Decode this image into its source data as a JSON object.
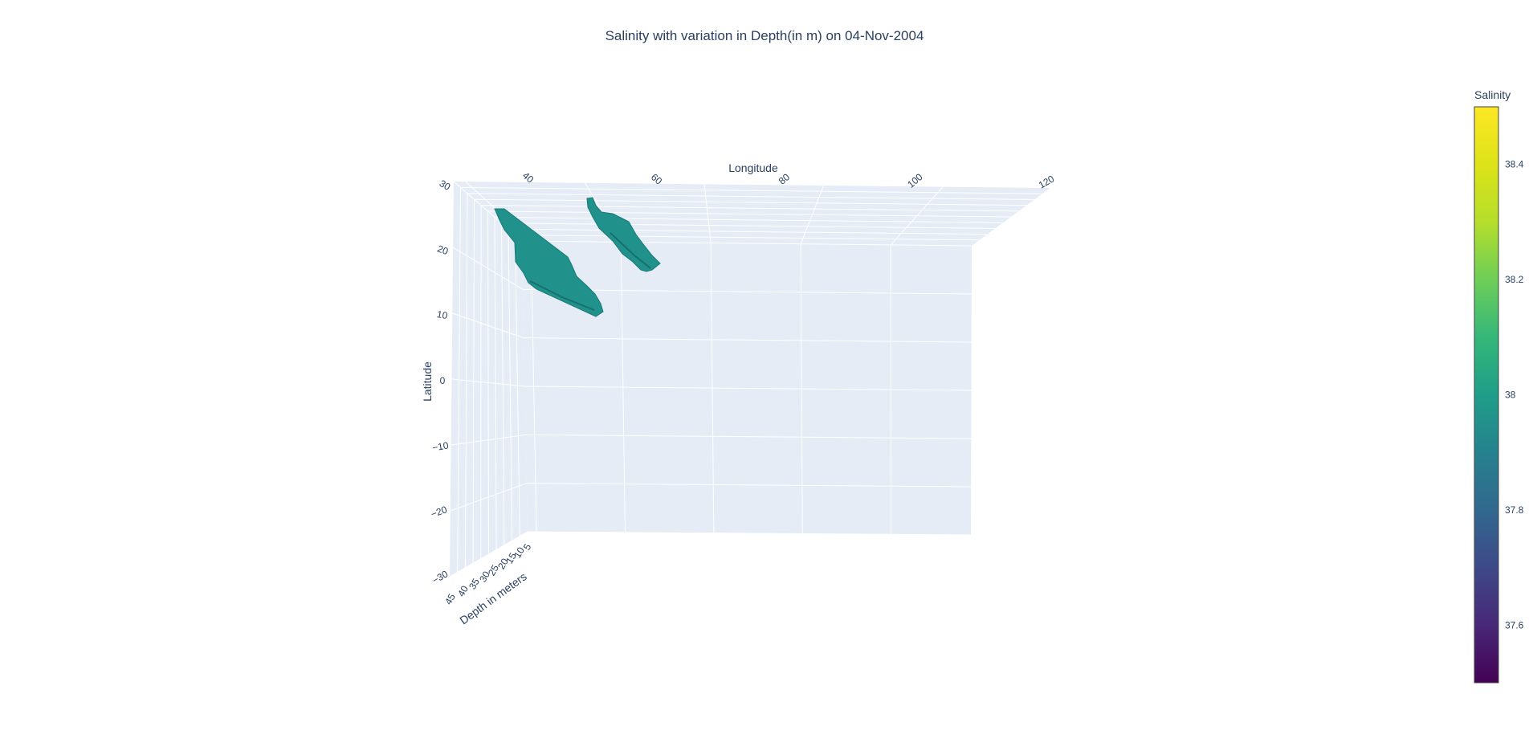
{
  "chart_data": {
    "type": "3d-isosurface",
    "title": "Salinity with variation in Depth(in m) on 04-Nov-2004",
    "axes": {
      "x": {
        "label": "Longitude",
        "ticks": [
          "40",
          "60",
          "80",
          "100",
          "120"
        ]
      },
      "y": {
        "label": "Latitude",
        "ticks": [
          "30",
          "20",
          "10",
          "0",
          "−10",
          "−20",
          "−30"
        ]
      },
      "z": {
        "label": "Depth in meters",
        "ticks": [
          "45",
          "40",
          "35",
          "30",
          "25",
          "20",
          "15",
          "10",
          "5"
        ]
      }
    },
    "colorbar": {
      "title": "Salinity",
      "colorscale": "Viridis",
      "range": [
        37.5,
        38.5
      ],
      "ticks": [
        "38.4",
        "38.2",
        "38",
        "37.8",
        "37.6"
      ],
      "tick_values": [
        38.4,
        38.2,
        38.0,
        37.8,
        37.6
      ]
    },
    "surface_color": "#21918c",
    "scene_background": "#e5ecf6"
  }
}
